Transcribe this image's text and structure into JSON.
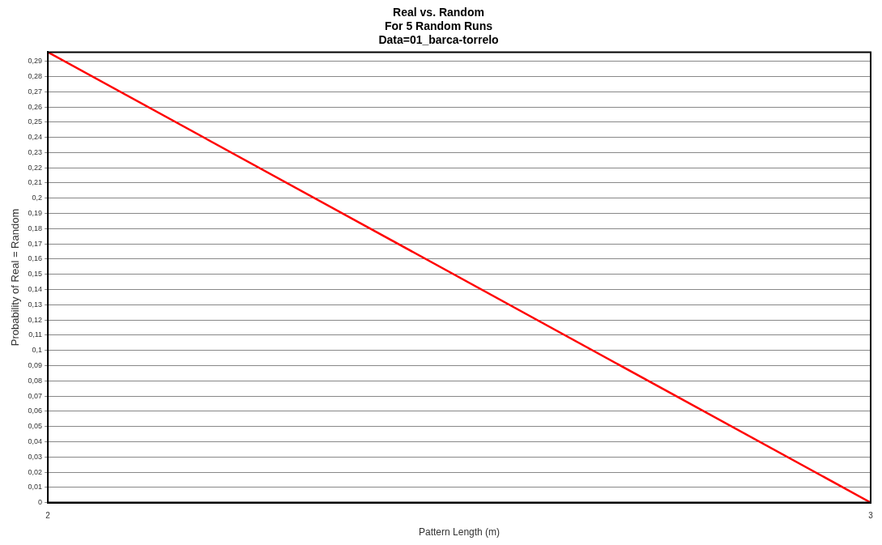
{
  "chart_data": {
    "type": "line",
    "title": "Real vs. Random\nFor 5 Random Runs\nData=01_barca-torrelo",
    "xlabel": "Pattern Length (m)",
    "ylabel": "Probability of Real = Random",
    "x": [
      2,
      3
    ],
    "series": [
      {
        "color": "#ff0000",
        "values": [
          0.296,
          0
        ]
      }
    ],
    "xlim": [
      2,
      3
    ],
    "xticks": [
      2,
      3
    ],
    "ylim": [
      0,
      0.296
    ],
    "yticks": [
      0,
      {
        "value": 0.01,
        "label": "0,01"
      },
      {
        "value": 0.02,
        "label": "0,02"
      },
      {
        "value": 0.03,
        "label": "0,03"
      },
      {
        "value": 0.04,
        "label": "0,04"
      },
      {
        "value": 0.05,
        "label": "0,05"
      },
      {
        "value": 0.06,
        "label": "0,06"
      },
      {
        "value": 0.07,
        "label": "0,07"
      },
      {
        "value": 0.08,
        "label": "0,08"
      },
      {
        "value": 0.09,
        "label": "0,09"
      },
      {
        "value": 0.1,
        "label": "0,1"
      },
      {
        "value": 0.11,
        "label": "0,11"
      },
      {
        "value": 0.12,
        "label": "0,12"
      },
      {
        "value": 0.13,
        "label": "0,13"
      },
      {
        "value": 0.14,
        "label": "0,14"
      },
      {
        "value": 0.15,
        "label": "0,15"
      },
      {
        "value": 0.16,
        "label": "0,16"
      },
      {
        "value": 0.17,
        "label": "0,17"
      },
      {
        "value": 0.18,
        "label": "0,18"
      },
      {
        "value": 0.19,
        "label": "0,19"
      },
      {
        "value": 0.2,
        "label": "0,2"
      },
      {
        "value": 0.21,
        "label": "0,21"
      },
      {
        "value": 0.22,
        "label": "0,22"
      },
      {
        "value": 0.23,
        "label": "0,23"
      },
      {
        "value": 0.24,
        "label": "0,24"
      },
      {
        "value": 0.25,
        "label": "0,25"
      },
      {
        "value": 0.26,
        "label": "0,26"
      },
      {
        "value": 0.27,
        "label": "0,27"
      },
      {
        "value": 0.28,
        "label": "0,28"
      },
      {
        "value": 0.29,
        "label": "0,29"
      }
    ],
    "grid": "y",
    "marker": "none",
    "line_style": "solid"
  }
}
